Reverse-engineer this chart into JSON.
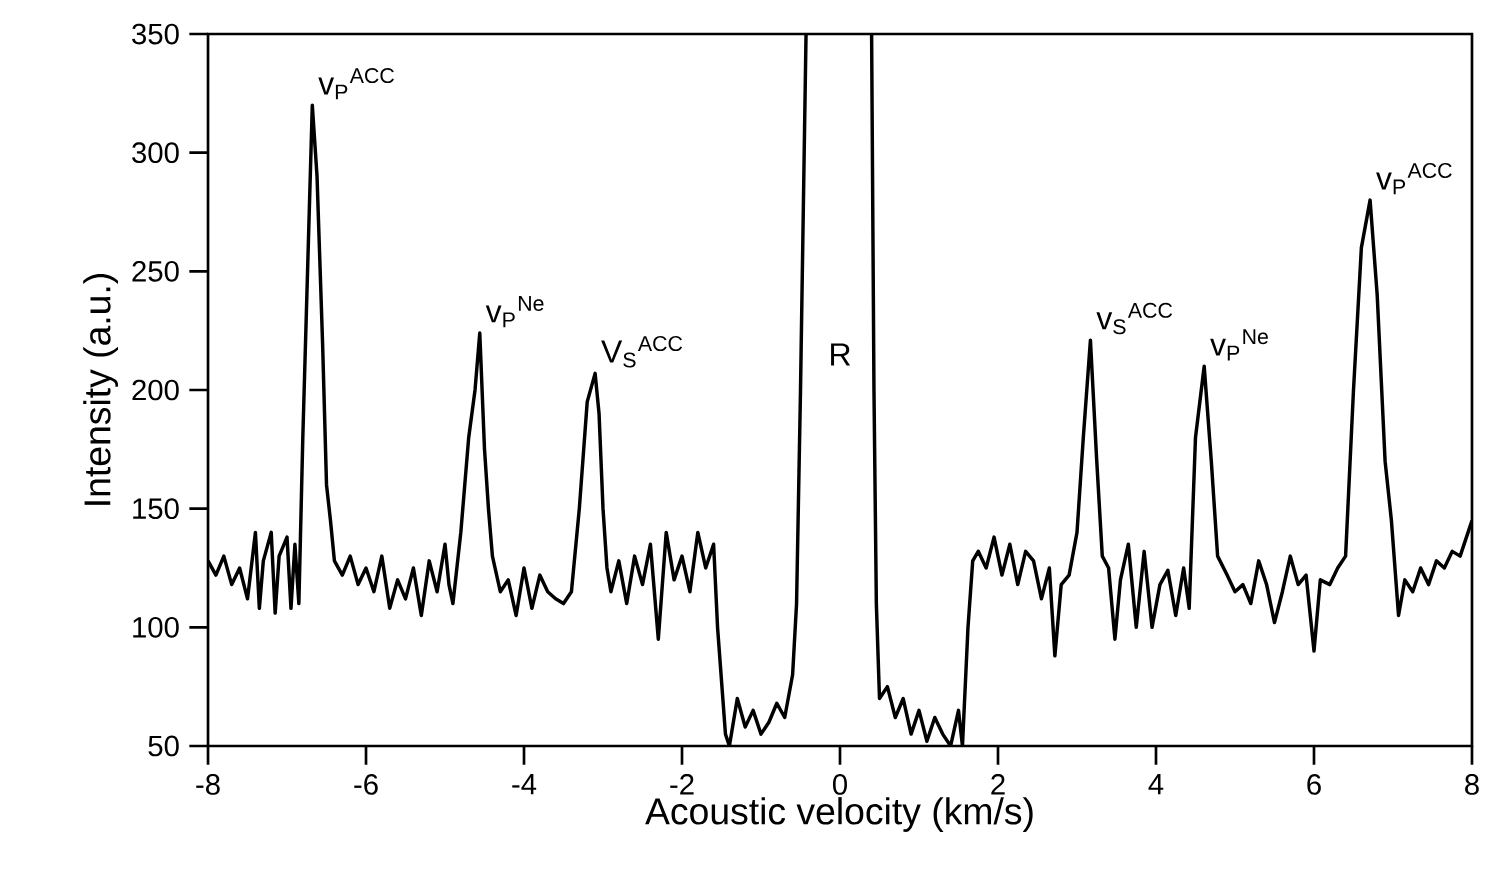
{
  "chart_data": {
    "type": "line",
    "xlabel": "Acoustic velocity (km/s)",
    "ylabel": "Intensity (a.u.)",
    "xlim": [
      -8,
      8
    ],
    "xticks": [
      -8,
      -6,
      -4,
      -2,
      0,
      2,
      4,
      6,
      8
    ],
    "ylim": [
      50,
      350
    ],
    "yticks": [
      50,
      100,
      150,
      200,
      250,
      300,
      350
    ],
    "series": [
      {
        "color": "#000000",
        "x": [
          -8.0,
          -7.9,
          -7.8,
          -7.7,
          -7.6,
          -7.5,
          -7.4,
          -7.35,
          -7.3,
          -7.2,
          -7.15,
          -7.1,
          -7.0,
          -6.95,
          -6.9,
          -6.85,
          -6.8,
          -6.68,
          -6.62,
          -6.55,
          -6.5,
          -6.45,
          -6.4,
          -6.3,
          -6.2,
          -6.1,
          -6.0,
          -5.9,
          -5.8,
          -5.7,
          -5.6,
          -5.5,
          -5.4,
          -5.3,
          -5.2,
          -5.1,
          -5.0,
          -4.95,
          -4.9,
          -4.8,
          -4.7,
          -4.62,
          -4.56,
          -4.5,
          -4.45,
          -4.4,
          -4.3,
          -4.2,
          -4.1,
          -4.0,
          -3.9,
          -3.8,
          -3.7,
          -3.6,
          -3.5,
          -3.4,
          -3.3,
          -3.2,
          -3.1,
          -3.05,
          -3.0,
          -2.95,
          -2.9,
          -2.8,
          -2.7,
          -2.6,
          -2.5,
          -2.4,
          -2.3,
          -2.2,
          -2.1,
          -2.0,
          -1.9,
          -1.8,
          -1.7,
          -1.6,
          -1.55,
          -1.45,
          -1.4,
          -1.3,
          -1.2,
          -1.1,
          -1.0,
          -0.9,
          -0.8,
          -0.7,
          -0.6,
          -0.55,
          -0.5,
          -0.43,
          0.0,
          0.4,
          0.43,
          0.46,
          0.5,
          0.6,
          0.7,
          0.8,
          0.9,
          1.0,
          1.1,
          1.2,
          1.3,
          1.4,
          1.5,
          1.55,
          1.62,
          1.68,
          1.75,
          1.85,
          1.95,
          2.05,
          2.15,
          2.25,
          2.35,
          2.45,
          2.55,
          2.65,
          2.72,
          2.8,
          2.9,
          3.0,
          3.08,
          3.17,
          3.25,
          3.32,
          3.4,
          3.48,
          3.55,
          3.65,
          3.75,
          3.85,
          3.95,
          4.05,
          4.15,
          4.25,
          4.35,
          4.42,
          4.5,
          4.61,
          4.7,
          4.78,
          4.9,
          5.0,
          5.1,
          5.2,
          5.3,
          5.4,
          5.5,
          5.6,
          5.7,
          5.8,
          5.9,
          6.0,
          6.08,
          6.2,
          6.3,
          6.4,
          6.5,
          6.6,
          6.71,
          6.8,
          6.9,
          6.98,
          7.07,
          7.15,
          7.25,
          7.35,
          7.45,
          7.55,
          7.65,
          7.75,
          7.85,
          7.95,
          8.0
        ],
        "values": [
          128,
          122,
          130,
          118,
          125,
          112,
          140,
          108,
          128,
          140,
          106,
          130,
          138,
          108,
          135,
          110,
          180,
          320,
          290,
          220,
          160,
          145,
          128,
          122,
          130,
          118,
          125,
          115,
          130,
          108,
          120,
          112,
          125,
          105,
          128,
          115,
          135,
          118,
          110,
          140,
          180,
          200,
          224,
          175,
          150,
          130,
          115,
          120,
          105,
          125,
          108,
          122,
          115,
          112,
          110,
          115,
          150,
          195,
          207,
          190,
          150,
          125,
          115,
          128,
          110,
          130,
          118,
          135,
          95,
          140,
          120,
          130,
          115,
          140,
          125,
          135,
          100,
          55,
          50,
          70,
          58,
          65,
          55,
          60,
          68,
          62,
          80,
          110,
          200,
          350,
          null,
          350,
          200,
          110,
          70,
          75,
          62,
          70,
          55,
          65,
          52,
          62,
          55,
          50,
          65,
          50,
          100,
          128,
          132,
          125,
          138,
          122,
          135,
          118,
          132,
          128,
          112,
          125,
          88,
          118,
          122,
          140,
          180,
          221,
          170,
          130,
          125,
          95,
          120,
          135,
          100,
          132,
          100,
          118,
          124,
          105,
          125,
          108,
          180,
          210,
          170,
          130,
          122,
          115,
          118,
          110,
          128,
          118,
          102,
          115,
          130,
          118,
          122,
          90,
          120,
          118,
          125,
          130,
          200,
          260,
          280,
          240,
          170,
          145,
          105,
          120,
          115,
          125,
          118,
          128,
          125,
          132,
          130,
          140,
          145
        ]
      }
    ],
    "annotations": [
      {
        "text": "v$_{P}$$^{ACC}$",
        "x": -6.68,
        "y": 320
      },
      {
        "text": "v$_{P}$$^{Ne}$",
        "x": -4.56,
        "y": 224
      },
      {
        "text": "V$_{S}$$^{ACC}$",
        "x": -3.1,
        "y": 207
      },
      "R",
      {
        "text": "v$_{S}$$^{ACC}$",
        "x": 3.17,
        "y": 221
      },
      {
        "text": "v$_{P}$$^{Ne}$",
        "x": 4.61,
        "y": 210
      },
      {
        "text": "v$_{P}$$^{ACC}$",
        "x": 6.71,
        "y": 280
      }
    ]
  }
}
